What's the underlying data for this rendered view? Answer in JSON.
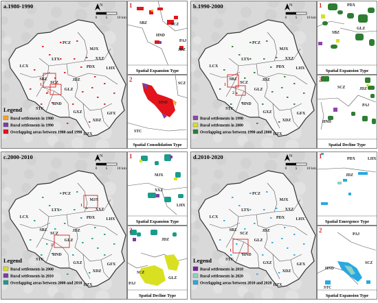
{
  "panels": [
    {
      "id": "a",
      "title": "a.1980-1990",
      "legend_title": "Legend",
      "legend": [
        {
          "label": "Rural settlements in 1980",
          "color": "#f5a623"
        },
        {
          "label": "Rural settlements in 1990",
          "color": "#7b3fa3"
        },
        {
          "label": "Overlapping areas between 1980 and 1990",
          "color": "#e3141b"
        }
      ],
      "dot_color": "#d42020",
      "insets": [
        {
          "num": "1",
          "caption": "Spatial Expansion Type",
          "labels": [
            "SBZ",
            "SCZ",
            "HND",
            "PAJ",
            "JDZ"
          ]
        },
        {
          "num": "2",
          "caption": "Spatial Consolidation Type",
          "labels": [
            "SCZ",
            "HND",
            "STC"
          ]
        }
      ]
    },
    {
      "id": "b",
      "title": "b.1990-2000",
      "legend_title": "",
      "legend": [
        {
          "label": "Rural settlements in 1990",
          "color": "#8e44ad"
        },
        {
          "label": "Rural settlements in 2000",
          "color": "#d6e01e"
        },
        {
          "label": "Overlapping areas between 1990 and 2000",
          "color": "#2e7d32"
        }
      ],
      "dot_color": "#2e7d32",
      "insets": [
        {
          "num": "1",
          "caption": "Spatial Expansion Type",
          "labels": [
            "PDX",
            "SBZ",
            "GLZ"
          ]
        },
        {
          "num": "2",
          "caption": "Spatial Decline Type",
          "labels": [
            "SCZ",
            "JDZ",
            "PAJ",
            "HND"
          ]
        }
      ]
    },
    {
      "id": "c",
      "title": "c.2000-2010",
      "legend_title": "Legend",
      "legend": [
        {
          "label": "Rural settlements in 2000",
          "color": "#d9e021"
        },
        {
          "label": "Rural settlements in 2010",
          "color": "#7b3fa3"
        },
        {
          "label": "Overlapping areas between 2000 and 2010",
          "color": "#1a9c8a"
        }
      ],
      "dot_color": "#1a9c8a",
      "insets": [
        {
          "num": "1",
          "caption": "Spatial Expansion Type",
          "labels": [
            "MJX",
            "XXZ",
            "LHX"
          ]
        },
        {
          "num": "2",
          "caption": "Spatial Decline Type",
          "labels": [
            "JDZ",
            "SCZ",
            "GLZ",
            "PAJ"
          ]
        }
      ]
    },
    {
      "id": "d",
      "title": "d.2010-2020",
      "legend_title": "Legend",
      "legend": [
        {
          "label": "Rural settlements in 2010",
          "color": "#7b1fa2"
        },
        {
          "label": "Rural settlements in 2020",
          "color": "#8ed1c6"
        },
        {
          "label": "Overlapping areas between 2010 and 2020",
          "color": "#29a8e0"
        }
      ],
      "dot_color": "#29a8e0",
      "insets": [
        {
          "num": "1",
          "caption": "Spatial Emergence Type",
          "labels": [
            "PDX",
            "LHX",
            "JDZ"
          ]
        },
        {
          "num": "2",
          "caption": "Spatial Expansion Type",
          "labels": [
            "PAJ",
            "SCZ",
            "HND",
            "STC"
          ]
        }
      ]
    }
  ],
  "map": {
    "north": "N",
    "scale_labels": [
      "0",
      "5",
      "10 km"
    ],
    "towns": [
      "PCZ",
      "MJX",
      "LTX",
      "XXZ",
      "LCX",
      "PDX",
      "LHX",
      "SBZ",
      "JDZ",
      "SCZ",
      "GLZ",
      "HND",
      "STC",
      "GXZ",
      "GFX",
      "XDZ",
      "PAJ",
      "HZX"
    ],
    "inset_marks": [
      "1",
      "2"
    ]
  }
}
